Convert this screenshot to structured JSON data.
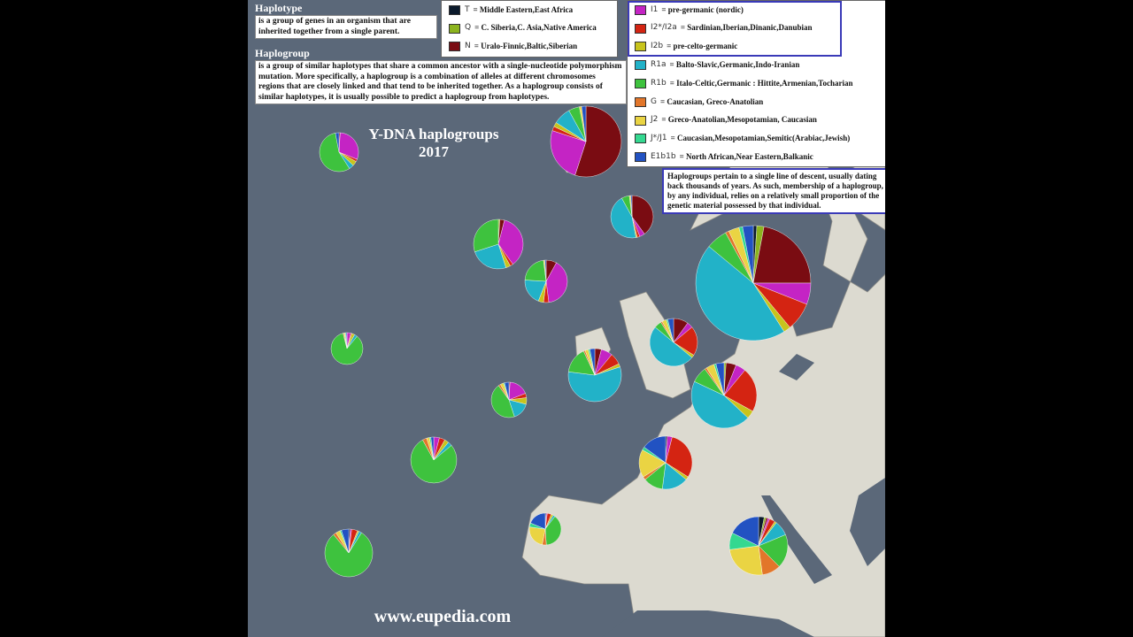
{
  "haplotype": {
    "title": "Haplotype",
    "text": "is a group of genes in an organism that are inherited together from a single parent."
  },
  "haplogroup": {
    "title": "Haplogroup",
    "text": "is a group of similar haplotypes that share a common ancestor with a single-nucleotide polymorphism mutation. More specifically, a haplogroup is a combination of alleles at different chromosomes regions that are closely linked and that tend to be inherited together. As a haplogroup consists of similar haplotypes, it is usually possible to predict a haplogroup from haplotypes."
  },
  "map_title": "Y-DNA haplogroups",
  "year": "2017",
  "legend": [
    {
      "code": "T",
      "desc": "= Middle Eastern,East Africa",
      "color": "#0b1a2c"
    },
    {
      "code": "Q",
      "desc": "= C. Siberia,C. Asia,Native America",
      "color": "#8cb41e"
    },
    {
      "code": "N",
      "desc": "= Uralo-Finnic,Baltic,Siberian",
      "color": "#7a0c12"
    },
    {
      "code": "I1",
      "desc": "= pre-germanic (nordic)",
      "color": "#c424c4"
    },
    {
      "code": "I2*/I2a",
      "desc": "= Sardinian,Iberian,Dinanic,Danubian",
      "color": "#d42412"
    },
    {
      "code": "I2b",
      "desc": "= pre-celto-germanic",
      "color": "#c8c41c"
    },
    {
      "code": "R1a",
      "desc": "= Balto-Slavic,Germanic,Indo-Iranian",
      "color": "#22b2c8"
    },
    {
      "code": "R1b",
      "desc": "= Italo-Celtic,Germanic : Hittite,Armenian,Tocharian",
      "color": "#3ec23e"
    },
    {
      "code": "G",
      "desc": "= Caucasian, Greco-Anatolian",
      "color": "#e2762a"
    },
    {
      "code": "J2",
      "desc": "= Greco-Anatolian,Mesopotamian, Caucasian",
      "color": "#ead443"
    },
    {
      "code": "J*/J1",
      "desc": "= Caucasian,Mesopotamian,Semitic(Arabiac,Jewish)",
      "color": "#34d890"
    },
    {
      "code": "E1b1b",
      "desc": "= North African,Near Eastern,Balkanic",
      "color": "#2252c2"
    }
  ],
  "note": "Haplogroups pertain to a single line of descent, usually dating back thousands of years. As such, membership of a haplogroup, by any individual, relies on a relatively small proportion of the genetic material possessed by that individual.",
  "source": "www.eupedia.com",
  "pies": [
    [
      0,
      0,
      55,
      25,
      2,
      2,
      8,
      5,
      0,
      1,
      0,
      2
    ],
    [
      1,
      2,
      22,
      6,
      8,
      2,
      45,
      6,
      1,
      3,
      1,
      3
    ],
    [
      0,
      1,
      5,
      5,
      22,
      4,
      45,
      8,
      1,
      4,
      1,
      4
    ],
    [
      0,
      1,
      3,
      36,
      2,
      3,
      25,
      30,
      0,
      0,
      0,
      0
    ],
    [
      0,
      0,
      8,
      40,
      4,
      4,
      20,
      22,
      0,
      1,
      0,
      1
    ],
    [
      0,
      0,
      40,
      4,
      2,
      1,
      45,
      6,
      0,
      1,
      0,
      1
    ],
    [
      0,
      0,
      4,
      7,
      7,
      2,
      57,
      16,
      1,
      2,
      1,
      3
    ],
    [
      0,
      0,
      1,
      18,
      4,
      6,
      16,
      45,
      2,
      3,
      1,
      4
    ],
    [
      0,
      0,
      0,
      4,
      4,
      3,
      3,
      78,
      3,
      2,
      1,
      2
    ],
    [
      1,
      0,
      0,
      1,
      4,
      1,
      2,
      80,
      2,
      3,
      1,
      5
    ],
    [
      1,
      0,
      0,
      3,
      30,
      2,
      16,
      12,
      2,
      17,
      2,
      15
    ],
    [
      3,
      1,
      1,
      1,
      3,
      1,
      8,
      18,
      10,
      24,
      9,
      17
    ],
    [
      0,
      0,
      1,
      30,
      2,
      4,
      4,
      56,
      0,
      0,
      0,
      3
    ],
    [
      0,
      0,
      0,
      4,
      1,
      3,
      3,
      85,
      1,
      1,
      1,
      1
    ],
    [
      1,
      0,
      0,
      1,
      4,
      2,
      2,
      37,
      4,
      23,
      4,
      18
    ],
    [
      0,
      0,
      10,
      4,
      20,
      2,
      50,
      5,
      1,
      3,
      1,
      4
    ]
  ]
}
